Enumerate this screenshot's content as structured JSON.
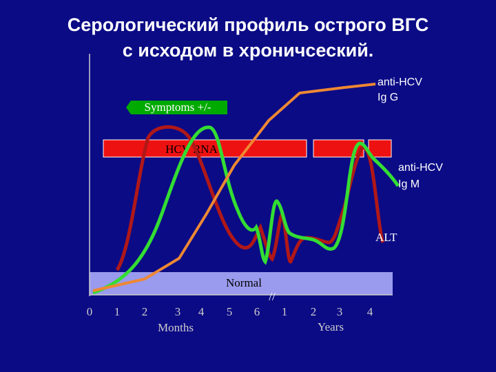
{
  "title": {
    "line1": "Серологический профиль  острого ВГС",
    "line2": "с исходом в хроничсеский."
  },
  "labels": {
    "anti_hcv_igg": [
      "anti-HCV",
      "Ig G"
    ],
    "anti_hcv_igm": [
      "anti-HCV",
      "Ig M"
    ],
    "symptoms": "Symptoms +/-",
    "hcv_rna": "HCV RNA",
    "alt": "ALT",
    "normal": "Normal",
    "break": "//"
  },
  "axis": {
    "ticks": [
      "0",
      "1",
      "2",
      "3",
      "4",
      "5",
      "6",
      "1",
      "2",
      "3",
      "4"
    ],
    "months": "Months",
    "years": "Years"
  }
}
